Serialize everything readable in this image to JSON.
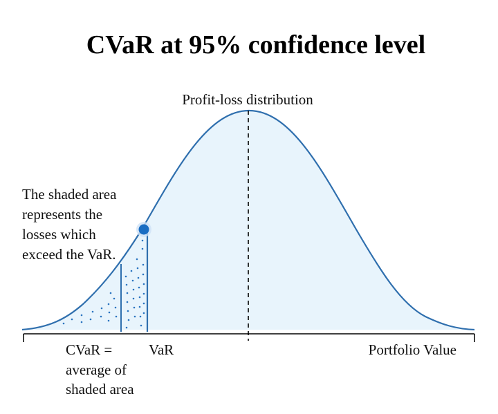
{
  "title": "CVaR at 95% confidence level",
  "curve_label": "Profit-loss distribution",
  "annotation_lines": [
    "The shaded area",
    "represents the",
    "losses which",
    "exceed the VaR."
  ],
  "cvar_lines": [
    "CVaR =",
    "average of",
    "shaded area"
  ],
  "var_label": "VaR",
  "axis_label": "Portfolio Value",
  "colors": {
    "curve": "#2f6fae",
    "fill": "#e8f4fc",
    "dots": "#2a74c0",
    "marker": "#1a6dc2",
    "axis": "#000000",
    "mean_line": "#000000"
  }
}
